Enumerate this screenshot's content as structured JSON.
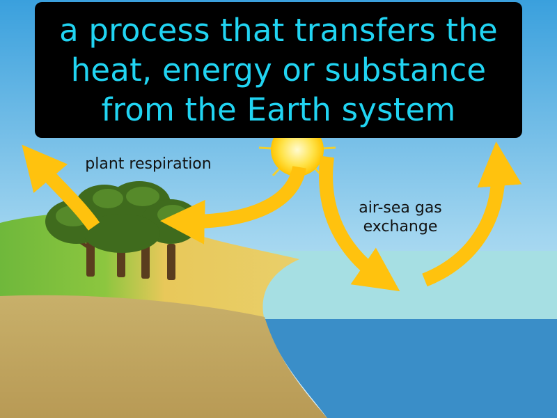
{
  "definition": {
    "text": "a process that transfers the heat, energy or substance from the Earth system"
  },
  "labels": {
    "plant_respiration": "plant respiration",
    "air_sea_gas_exchange": "air-sea gas exchange"
  },
  "colors": {
    "caption_text": "#21d4f2",
    "caption_background": "#000000",
    "arrow": "#ffc20e",
    "sky_top": "#3aa0dd",
    "ocean": "#3a8ec8",
    "shallow_water": "#a6dfe3",
    "sand": "#c9b06b",
    "grass": "#6fb83b"
  },
  "icons": {
    "sun": "sun-icon",
    "trees": "tree-icon"
  }
}
